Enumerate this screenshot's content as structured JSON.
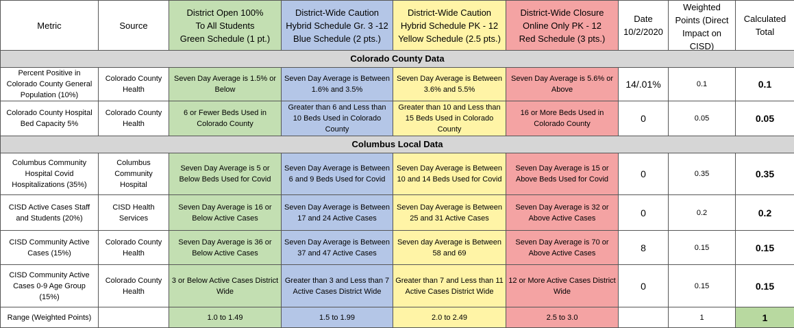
{
  "headers": {
    "metric": "Metric",
    "source": "Source",
    "green": [
      "District Open 100%",
      "To All Students",
      "Green Schedule (1 pt.)"
    ],
    "blue": [
      "District-Wide Caution",
      "Hybrid Schedule Gr. 3 -12",
      "Blue Schedule (2 pts.)"
    ],
    "yellow": [
      "District-Wide Caution",
      "Hybrid Schedule PK - 12",
      "Yellow Schedule (2.5 pts.)"
    ],
    "red": [
      "District-Wide Closure",
      "Online Only PK - 12",
      "Red Schedule (3 pts.)"
    ],
    "date": [
      "Date",
      "10/2/2020"
    ],
    "weighted": [
      "Weighted",
      "Points (Direct",
      "Impact on",
      "CISD)"
    ],
    "calculated": [
      "Calculated",
      "Total"
    ]
  },
  "sections": {
    "county": "Colorado County Data",
    "local": "Columbus Local Data"
  },
  "rows": [
    {
      "metric": "Percent Positive in Colorado County General Population (10%)",
      "source": "Colorado County Health",
      "green": "Seven Day Average is 1.5% or Below",
      "blue": "Seven Day Average is Between 1.6% and 3.5%",
      "yellow": "Seven Day Average is Between 3.6% and 5.5%",
      "red": "Seven Day Average is 5.6% or Above",
      "date": "14/.01%",
      "weight": "0.1",
      "total": "0.1"
    },
    {
      "metric": "Colorado County Hospital Bed Capacity 5%",
      "source": "Colorado County Health",
      "green": "6 or Fewer Beds Used in Colorado County",
      "blue": "Greater than 6 and Less than 10  Beds Used in Colorado County",
      "yellow": "Greater than 10 and Less than 15  Beds Used in Colorado County",
      "red": "16 or More Beds Used in Colorado County",
      "date": "0",
      "weight": "0.05",
      "total": "0.05"
    },
    {
      "metric": "Columbus Community Hospital Covid Hospitalizations (35%)",
      "source": "Columbus Community Hospital",
      "green": "Seven Day Average is  5 or Below Beds Used for Covid",
      "blue": "Seven Day Average is Between 6 and 9 Beds Used for Covid",
      "yellow": "Seven Day Average is Between 10 and 14 Beds Used for Covid",
      "red": "Seven Day Average is 15 or Above Beds Used for Covid",
      "date": "0",
      "weight": "0.35",
      "total": "0.35"
    },
    {
      "metric": "CISD Active Cases Staff and Students (20%)",
      "source": "CISD Health Services",
      "green": "Seven Day Average is 16 or Below Active Cases",
      "blue": "Seven Day Average is Between 17 and 24 Active Cases",
      "yellow": "Seven Day Average is Between 25 and 31 Active Cases",
      "red": "Seven Day Average is 32 or Above Active Cases",
      "date": "0",
      "weight": "0.2",
      "total": "0.2"
    },
    {
      "metric": "CISD Community Active Cases (15%)",
      "source": "Colorado County Health",
      "green": "Seven Day Average is 36 or Below Active Cases",
      "blue": "Seven Day Average is Between 37 and 47 Active Cases",
      "yellow": "Seven day Average is Between 58 and 69",
      "red": "Seven Day Average is 70 or Above Active Cases",
      "date": "8",
      "weight": "0.15",
      "total": "0.15"
    },
    {
      "metric": "CISD Community Active Cases 0-9 Age Group (15%)",
      "source": "Colorado County Health",
      "green": "3 or Below Active Cases District Wide",
      "blue": "Greater than 3 and Less than 7 Active Cases District Wide",
      "yellow": "Greater than 7 and Less than 11 Active Cases District Wide",
      "red": "12 or More Active Cases District Wide",
      "date": "0",
      "weight": "0.15",
      "total": "0.15"
    }
  ],
  "range_row": {
    "label": "Range (Weighted Points)",
    "source": "",
    "green": "1.0 to 1.49",
    "blue": "1.5 to 1.99",
    "yellow": "2.0 to 2.49",
    "red": "2.5 to 3.0",
    "date": "",
    "weight": "1",
    "total": "1"
  },
  "colors": {
    "green": "#c3dfb2",
    "blue": "#b4c6e7",
    "yellow": "#fff4a6",
    "red": "#f4a3a3",
    "section_gray": "#d6d6d6"
  }
}
